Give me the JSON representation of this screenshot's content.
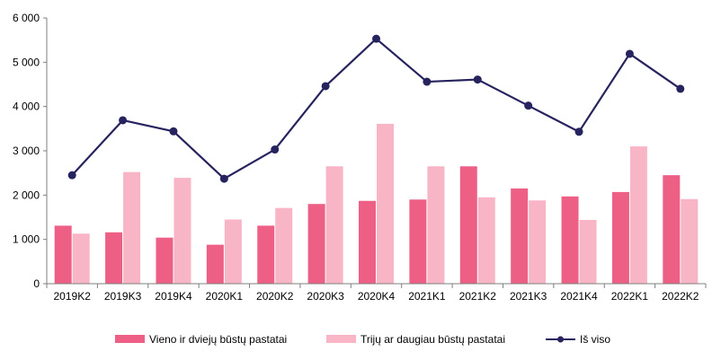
{
  "chart_data": {
    "type": "bar",
    "categories": [
      "2019K2",
      "2019K3",
      "2019K4",
      "2020K1",
      "2020K2",
      "2020K3",
      "2020K4",
      "2021K1",
      "2021K2",
      "2021K3",
      "2021K4",
      "2022K1",
      "2022K2"
    ],
    "series": [
      {
        "name": "Vieno ir dviejų būstų pastatai",
        "type": "bar",
        "color": "#ee5f86",
        "values": [
          1310,
          1160,
          1040,
          880,
          1310,
          1800,
          1870,
          1900,
          2650,
          2150,
          1970,
          2070,
          2450
        ]
      },
      {
        "name": "Trijų ar daugiau būstų pastatai",
        "type": "bar",
        "color": "#f8b5c5",
        "values": [
          1130,
          2520,
          2390,
          1450,
          1710,
          2650,
          3610,
          2650,
          1950,
          1880,
          1440,
          3100,
          1910
        ]
      },
      {
        "name": "Iš viso",
        "type": "line",
        "color": "#26235e",
        "values": [
          2450,
          3690,
          3440,
          2370,
          3030,
          4460,
          5530,
          4560,
          4610,
          4020,
          3430,
          5190,
          4400
        ]
      }
    ],
    "y_ticks": [
      "0",
      "1 000",
      "2 000",
      "3 000",
      "4 000",
      "5 000",
      "6 000"
    ],
    "ylim": [
      0,
      6000
    ],
    "grid": false,
    "legend_position": "bottom"
  }
}
